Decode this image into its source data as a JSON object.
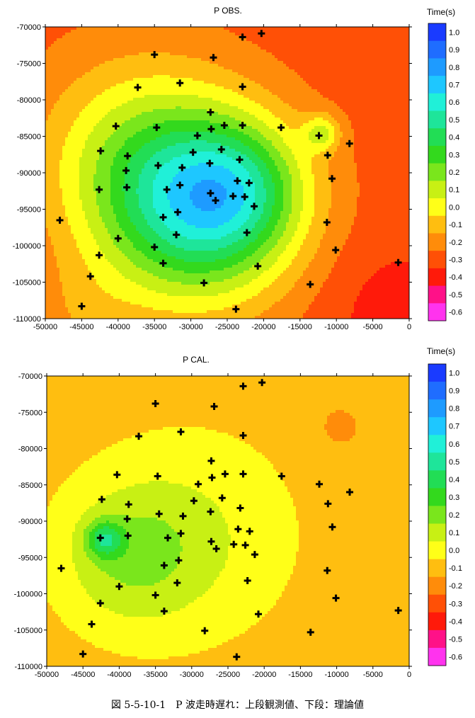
{
  "caption": "図 5-5-10-1　P 波走時遅れ：上段観測値、下段：理論値",
  "colorbar": {
    "title": "Time(s)",
    "levels": [
      1.0,
      0.9,
      0.8,
      0.7,
      0.6,
      0.5,
      0.4,
      0.3,
      0.2,
      0.1,
      0.0,
      -0.1,
      -0.2,
      -0.3,
      -0.4,
      -0.5,
      -0.6
    ],
    "labels": [
      "1.0",
      "0.9",
      "0.8",
      "0.7",
      "0.6",
      "0.5",
      "0.4",
      "0.3",
      "0.2",
      "0.1",
      "0.0",
      "-0.1",
      "-0.2",
      "-0.3",
      "-0.4",
      "-0.5",
      "-0.6"
    ],
    "colors": [
      "#1a3bff",
      "#1f6dff",
      "#1e9bff",
      "#1ec7ff",
      "#20f0d8",
      "#1ee59a",
      "#22dd55",
      "#33d91d",
      "#7ae61c",
      "#c8f014",
      "#ffff18",
      "#ffbe10",
      "#ff8c0a",
      "#ff5006",
      "#ff1a0a",
      "#ff1188",
      "#ff33ee"
    ]
  },
  "chart_data": [
    {
      "type": "heatmap",
      "title": "P OBS.",
      "xlim": [
        -50000,
        0
      ],
      "ylim": [
        -110000,
        -70000
      ],
      "xticks": [
        -50000,
        -45000,
        -40000,
        -35000,
        -30000,
        -25000,
        -20000,
        -15000,
        -10000,
        -5000,
        0
      ],
      "yticks": [
        -70000,
        -75000,
        -80000,
        -85000,
        -90000,
        -95000,
        -100000,
        -105000,
        -110000
      ],
      "xticklabels": [
        "-50000",
        "-45000",
        "-40000",
        "-35000",
        "-30000",
        "-25000",
        "-20000",
        "-15000",
        "-10000",
        "-5000",
        "0"
      ],
      "yticklabels": [
        "-70000",
        "-75000",
        "-80000",
        "-85000",
        "-90000",
        "-95000",
        "-100000",
        "-105000",
        "-110000"
      ],
      "field_centers": [
        {
          "x": -29000,
          "y": -95500,
          "value": 0.4,
          "spread": 13000
        },
        {
          "x": -37000,
          "y": -88000,
          "value": 0.1,
          "spread": 14000
        },
        {
          "x": -23000,
          "y": -92000,
          "value": 0.1,
          "spread": 9000
        },
        {
          "x": -12000,
          "y": -84500,
          "value": 0.05,
          "spread": 2500
        },
        {
          "x": -2000,
          "y": -109000,
          "value": -0.35,
          "spread": 9000
        },
        {
          "x": -45000,
          "y": -110000,
          "value": -0.15,
          "spread": 8000
        }
      ],
      "field_base": -0.25,
      "stations": [
        [
          -48000,
          -96500
        ],
        [
          -45000,
          -108300
        ],
        [
          -43800,
          -104200
        ],
        [
          -42600,
          -101300
        ],
        [
          -42600,
          -92300
        ],
        [
          -42400,
          -87000
        ],
        [
          -40300,
          -83600
        ],
        [
          -40000,
          -99000
        ],
        [
          -38800,
          -92000
        ],
        [
          -38900,
          -89700
        ],
        [
          -38700,
          -87700
        ],
        [
          -37300,
          -78300
        ],
        [
          -35000,
          -73800
        ],
        [
          -35000,
          -100200
        ],
        [
          -34700,
          -83800
        ],
        [
          -34500,
          -89000
        ],
        [
          -33800,
          -102400
        ],
        [
          -33800,
          -96100
        ],
        [
          -33300,
          -92300
        ],
        [
          -32000,
          -98500
        ],
        [
          -31800,
          -95400
        ],
        [
          -31500,
          -77700
        ],
        [
          -31500,
          -91700
        ],
        [
          -31200,
          -89300
        ],
        [
          -29700,
          -87200
        ],
        [
          -29100,
          -84900
        ],
        [
          -28200,
          -105100
        ],
        [
          -27400,
          -88700
        ],
        [
          -27300,
          -81700
        ],
        [
          -27300,
          -92800
        ],
        [
          -27200,
          -84000
        ],
        [
          -26900,
          -74200
        ],
        [
          -26600,
          -93800
        ],
        [
          -25800,
          -86800
        ],
        [
          -25400,
          -83500
        ],
        [
          -24200,
          -93200
        ],
        [
          -23800,
          -108700
        ],
        [
          -23600,
          -91100
        ],
        [
          -23300,
          -88200
        ],
        [
          -22900,
          -83500
        ],
        [
          -22900,
          -78200
        ],
        [
          -22900,
          -71400
        ],
        [
          -22600,
          -93300
        ],
        [
          -22300,
          -98200
        ],
        [
          -22000,
          -91400
        ],
        [
          -21300,
          -94600
        ],
        [
          -20800,
          -102800
        ],
        [
          -20300,
          -70900
        ],
        [
          -17600,
          -83800
        ],
        [
          -13600,
          -105300
        ],
        [
          -12400,
          -84900
        ],
        [
          -11300,
          -96800
        ],
        [
          -11200,
          -87600
        ],
        [
          -10600,
          -90800
        ],
        [
          -10100,
          -100600
        ],
        [
          -8200,
          -86000
        ],
        [
          -1500,
          -102300
        ]
      ]
    },
    {
      "type": "heatmap",
      "title": "P CAL.",
      "xlim": [
        -50000,
        0
      ],
      "ylim": [
        -110000,
        -70000
      ],
      "xticks": [
        -50000,
        -45000,
        -40000,
        -35000,
        -30000,
        -25000,
        -20000,
        -15000,
        -10000,
        -5000,
        0
      ],
      "yticks": [
        -70000,
        -75000,
        -80000,
        -85000,
        -90000,
        -95000,
        -100000,
        -105000,
        -110000
      ],
      "xticklabels": [
        "-50000",
        "-45000",
        "-40000",
        "-35000",
        "-30000",
        "-25000",
        "-20000",
        "-15000",
        "-10000",
        "-5000",
        "0"
      ],
      "yticklabels": [
        "-70000",
        "-75000",
        "-80000",
        "-85000",
        "-90000",
        "-95000",
        "-100000",
        "-105000",
        "-110000"
      ],
      "field_centers": [
        {
          "x": -39000,
          "y": -95000,
          "value": 0.15,
          "spread": 9500
        },
        {
          "x": -42000,
          "y": -92500,
          "value": 0.3,
          "spread": 2500
        },
        {
          "x": -30000,
          "y": -92000,
          "value": 0.1,
          "spread": 14000
        },
        {
          "x": -9500,
          "y": -77000,
          "value": -0.15,
          "spread": 2800
        }
      ],
      "field_base": -0.05,
      "stations": [
        [
          -48000,
          -96500
        ],
        [
          -45000,
          -108300
        ],
        [
          -43800,
          -104200
        ],
        [
          -42600,
          -101300
        ],
        [
          -42600,
          -92300
        ],
        [
          -42400,
          -87000
        ],
        [
          -40300,
          -83600
        ],
        [
          -40000,
          -99000
        ],
        [
          -38800,
          -92000
        ],
        [
          -38900,
          -89700
        ],
        [
          -38700,
          -87700
        ],
        [
          -37300,
          -78300
        ],
        [
          -35000,
          -73800
        ],
        [
          -35000,
          -100200
        ],
        [
          -34700,
          -83800
        ],
        [
          -34500,
          -89000
        ],
        [
          -33800,
          -102400
        ],
        [
          -33800,
          -96100
        ],
        [
          -33300,
          -92300
        ],
        [
          -32000,
          -98500
        ],
        [
          -31800,
          -95400
        ],
        [
          -31500,
          -77700
        ],
        [
          -31500,
          -91700
        ],
        [
          -31200,
          -89300
        ],
        [
          -29700,
          -87200
        ],
        [
          -29100,
          -84900
        ],
        [
          -28200,
          -105100
        ],
        [
          -27400,
          -88700
        ],
        [
          -27300,
          -81700
        ],
        [
          -27300,
          -92800
        ],
        [
          -27200,
          -84000
        ],
        [
          -26900,
          -74200
        ],
        [
          -26600,
          -93800
        ],
        [
          -25800,
          -86800
        ],
        [
          -25400,
          -83500
        ],
        [
          -24200,
          -93200
        ],
        [
          -23800,
          -108700
        ],
        [
          -23600,
          -91100
        ],
        [
          -23300,
          -88200
        ],
        [
          -22900,
          -83500
        ],
        [
          -22900,
          -78200
        ],
        [
          -22900,
          -71400
        ],
        [
          -22600,
          -93300
        ],
        [
          -22300,
          -98200
        ],
        [
          -22000,
          -91400
        ],
        [
          -21300,
          -94600
        ],
        [
          -20800,
          -102800
        ],
        [
          -20300,
          -70900
        ],
        [
          -17600,
          -83800
        ],
        [
          -13600,
          -105300
        ],
        [
          -12400,
          -84900
        ],
        [
          -11300,
          -96800
        ],
        [
          -11200,
          -87600
        ],
        [
          -10600,
          -90800
        ],
        [
          -10100,
          -100600
        ],
        [
          -8200,
          -86000
        ],
        [
          -1500,
          -102300
        ]
      ]
    }
  ]
}
